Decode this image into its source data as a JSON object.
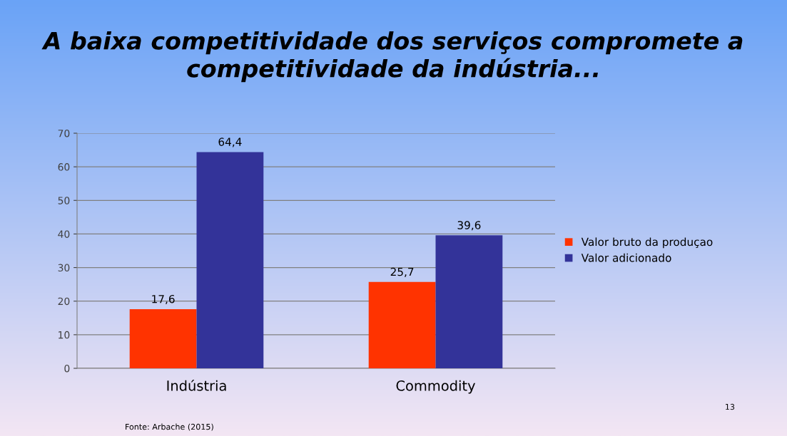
{
  "chart_data": {
    "type": "bar",
    "title": "A baixa competitividade dos serviços compromete a competitividade da indústria...",
    "categories": [
      "Indústria",
      "Commodity"
    ],
    "series": [
      {
        "name": "Valor bruto da produçao",
        "color": "#ff3300",
        "values": [
          17.6,
          25.7
        ],
        "value_labels": [
          "17,6",
          "25,7"
        ]
      },
      {
        "name": "Valor adicionado",
        "color": "#333399",
        "values": [
          64.4,
          39.6
        ],
        "value_labels": [
          "64,4",
          "39,6"
        ]
      }
    ],
    "ylim": [
      0,
      70
    ],
    "yticks": [
      0,
      10,
      20,
      30,
      40,
      50,
      60,
      70
    ],
    "grid": "y",
    "legend": "right",
    "annotations": [
      "Fonte: Arbache (2015)",
      "13"
    ]
  }
}
